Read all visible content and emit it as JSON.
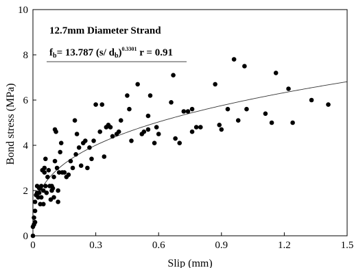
{
  "chart_data": {
    "type": "scatter",
    "xlabel": "Slip (mm)",
    "ylabel": "Bond stress (MPa)",
    "xlim": [
      0,
      1.5
    ],
    "ylim": [
      0,
      10
    ],
    "x_ticks": [
      "0",
      "0.3",
      "0.6",
      "0.9",
      "1.2",
      "1.5"
    ],
    "y_ticks": [
      "0",
      "2",
      "4",
      "6",
      "8",
      "10"
    ],
    "grid": false,
    "annotations": {
      "title": "12.7mm Diameter Strand",
      "equation_lhs": "f",
      "equation_lhs_sub": "b",
      "equation_mid": "= 13.787 (s/ d",
      "equation_mid_sub": "b",
      "equation_close": ")",
      "equation_exp": "0.3301",
      "equation_r": " r = 0.91"
    },
    "fit_curve": {
      "a": 13.787,
      "b": 0.3301,
      "db": 12.7
    },
    "points": [
      [
        0.0,
        0.0
      ],
      [
        0.0,
        0.4
      ],
      [
        0.005,
        0.5
      ],
      [
        0.005,
        0.8
      ],
      [
        0.01,
        0.6
      ],
      [
        0.01,
        1.5
      ],
      [
        0.015,
        1.8
      ],
      [
        0.01,
        1.1
      ],
      [
        0.02,
        1.9
      ],
      [
        0.02,
        2.2
      ],
      [
        0.025,
        1.7
      ],
      [
        0.03,
        2.1
      ],
      [
        0.03,
        1.9
      ],
      [
        0.035,
        1.4
      ],
      [
        0.035,
        2.1
      ],
      [
        0.04,
        1.7
      ],
      [
        0.04,
        2.2
      ],
      [
        0.045,
        2.9
      ],
      [
        0.05,
        1.4
      ],
      [
        0.05,
        2.0
      ],
      [
        0.055,
        2.8
      ],
      [
        0.055,
        3.0
      ],
      [
        0.06,
        3.4
      ],
      [
        0.06,
        2.2
      ],
      [
        0.065,
        1.9
      ],
      [
        0.07,
        2.6
      ],
      [
        0.075,
        2.9
      ],
      [
        0.08,
        2.2
      ],
      [
        0.085,
        1.6
      ],
      [
        0.09,
        2.0
      ],
      [
        0.09,
        2.2
      ],
      [
        0.095,
        2.1
      ],
      [
        0.1,
        2.6
      ],
      [
        0.1,
        1.7
      ],
      [
        0.105,
        3.3
      ],
      [
        0.105,
        4.7
      ],
      [
        0.11,
        4.6
      ],
      [
        0.115,
        3.0
      ],
      [
        0.12,
        2.0
      ],
      [
        0.12,
        1.5
      ],
      [
        0.125,
        2.8
      ],
      [
        0.13,
        3.7
      ],
      [
        0.135,
        4.1
      ],
      [
        0.14,
        2.8
      ],
      [
        0.15,
        2.8
      ],
      [
        0.16,
        2.6
      ],
      [
        0.17,
        2.7
      ],
      [
        0.18,
        3.3
      ],
      [
        0.19,
        3.0
      ],
      [
        0.2,
        5.1
      ],
      [
        0.205,
        3.6
      ],
      [
        0.21,
        4.5
      ],
      [
        0.22,
        3.9
      ],
      [
        0.23,
        3.1
      ],
      [
        0.24,
        4.1
      ],
      [
        0.25,
        4.2
      ],
      [
        0.26,
        3.0
      ],
      [
        0.27,
        3.9
      ],
      [
        0.28,
        3.4
      ],
      [
        0.29,
        4.2
      ],
      [
        0.3,
        5.8
      ],
      [
        0.32,
        4.6
      ],
      [
        0.33,
        5.8
      ],
      [
        0.34,
        3.5
      ],
      [
        0.35,
        4.8
      ],
      [
        0.36,
        4.9
      ],
      [
        0.37,
        4.8
      ],
      [
        0.38,
        4.4
      ],
      [
        0.4,
        4.5
      ],
      [
        0.41,
        4.6
      ],
      [
        0.42,
        5.1
      ],
      [
        0.45,
        6.2
      ],
      [
        0.46,
        5.6
      ],
      [
        0.47,
        4.2
      ],
      [
        0.5,
        6.7
      ],
      [
        0.52,
        4.5
      ],
      [
        0.53,
        4.6
      ],
      [
        0.55,
        5.3
      ],
      [
        0.55,
        4.7
      ],
      [
        0.56,
        6.2
      ],
      [
        0.58,
        4.1
      ],
      [
        0.59,
        4.8
      ],
      [
        0.6,
        4.5
      ],
      [
        0.66,
        5.9
      ],
      [
        0.67,
        7.1
      ],
      [
        0.68,
        4.3
      ],
      [
        0.7,
        4.1
      ],
      [
        0.72,
        5.5
      ],
      [
        0.74,
        5.5
      ],
      [
        0.76,
        5.6
      ],
      [
        0.76,
        4.6
      ],
      [
        0.78,
        4.8
      ],
      [
        0.8,
        4.8
      ],
      [
        0.87,
        6.7
      ],
      [
        0.89,
        4.9
      ],
      [
        0.9,
        4.7
      ],
      [
        0.93,
        5.6
      ],
      [
        0.96,
        7.8
      ],
      [
        0.98,
        5.1
      ],
      [
        1.01,
        7.5
      ],
      [
        1.02,
        5.6
      ],
      [
        1.11,
        5.4
      ],
      [
        1.14,
        5.0
      ],
      [
        1.16,
        7.2
      ],
      [
        1.22,
        6.5
      ],
      [
        1.24,
        5.0
      ],
      [
        1.33,
        6.0
      ],
      [
        1.41,
        5.8
      ]
    ]
  }
}
